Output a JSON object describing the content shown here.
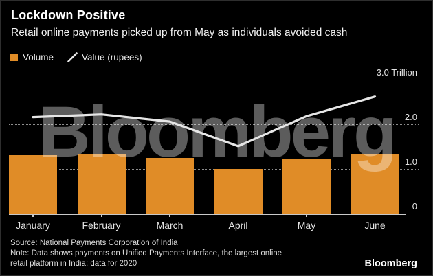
{
  "header": {
    "title": "Lockdown Positive",
    "subtitle": "Retail online payments picked up from May as individuals avoided cash"
  },
  "legend": [
    {
      "label": "Volume",
      "swatch": "square",
      "color": "#E08C27"
    },
    {
      "label": "Value (rupees)",
      "swatch": "line",
      "color": "#E6E6E6"
    }
  ],
  "chart_data": {
    "type": "bar+line",
    "categories": [
      "January",
      "February",
      "March",
      "April",
      "May",
      "June"
    ],
    "series": [
      {
        "name": "Volume",
        "type": "bar",
        "color": "#E08C27",
        "values": [
          1.31,
          1.33,
          1.25,
          1.0,
          1.23,
          1.34
        ]
      },
      {
        "name": "Value (rupees)",
        "type": "line",
        "color": "#E6E6E6",
        "values": [
          2.16,
          2.22,
          2.06,
          1.51,
          2.18,
          2.62
        ]
      }
    ],
    "ylabel": "",
    "xlabel": "",
    "ylim": [
      0,
      3.0
    ],
    "y_axis": {
      "position": "right",
      "ticks": [
        0,
        1.0,
        2.0,
        3.0
      ],
      "tick_labels": [
        "0",
        "1.0",
        "2.0",
        "3.0 Trillion"
      ],
      "gridlines": "dotted"
    },
    "legend_position": "top-left",
    "watermark": "Bloomberg"
  },
  "footer": {
    "source": "Source: National Payments Corporation of India",
    "note_lines": [
      "Note: Data shows payments on Unified Payments Interface, the largest online",
      "retail platform in India; data for 2020"
    ],
    "brand": "Bloomberg"
  }
}
